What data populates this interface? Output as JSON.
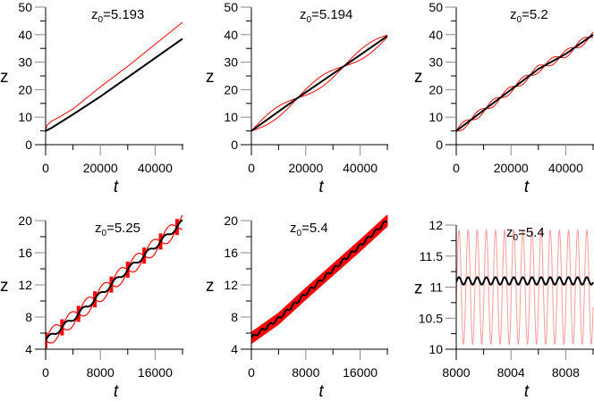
{
  "figure": {
    "colors": {
      "red_series": "#ff0000",
      "black_series": "#000000",
      "light_red": "#ff9a9a",
      "axis": "#000000",
      "major_tick": "#888888"
    }
  },
  "chart_data": [
    {
      "type": "line",
      "panel": "a",
      "title": "z0=5.193",
      "title_parts": {
        "var": "z",
        "sub": "0",
        "value": "=5.193"
      },
      "xlabel": "t",
      "ylabel": "z",
      "xlim": [
        0,
        50000
      ],
      "ylim": [
        0,
        50
      ],
      "xticks": [
        0,
        20000,
        40000
      ],
      "xtick_labels": [
        "0",
        "20000",
        "40000"
      ],
      "yticks": [
        0,
        10,
        20,
        30,
        40,
        50
      ],
      "ytick_labels": [
        "0",
        "10",
        "20",
        "30",
        "40",
        "50"
      ],
      "series": [
        {
          "name": "red",
          "color": "#ff0000",
          "x": [
            0,
            500,
            2000,
            5000,
            10000,
            20000,
            30000,
            40000,
            50000
          ],
          "y": [
            5,
            7,
            8.5,
            10,
            13,
            21,
            28.5,
            36.5,
            44.5
          ]
        },
        {
          "name": "black",
          "color": "#000000",
          "x": [
            0,
            2000,
            10000,
            20000,
            30000,
            40000,
            50000
          ],
          "y": [
            5,
            6,
            11,
            17.5,
            24.5,
            31.5,
            38.5
          ]
        }
      ]
    },
    {
      "type": "line",
      "panel": "b",
      "title": "z0=5.194",
      "title_parts": {
        "var": "z",
        "sub": "0",
        "value": "=5.194"
      },
      "xlabel": "t",
      "ylabel": "z",
      "xlim": [
        0,
        50000
      ],
      "ylim": [
        0,
        50
      ],
      "xticks": [
        0,
        20000,
        40000
      ],
      "xtick_labels": [
        "0",
        "20000",
        "40000"
      ],
      "yticks": [
        0,
        10,
        20,
        30,
        40,
        50
      ],
      "ytick_labels": [
        "0",
        "10",
        "20",
        "30",
        "40",
        "50"
      ],
      "series": [
        {
          "name": "black",
          "color": "#000000",
          "x": [
            0,
            17000,
            34000,
            50000
          ],
          "y": [
            5,
            17,
            28.5,
            39.5
          ]
        },
        {
          "name": "red",
          "color": "#ff0000",
          "note": "elliptical loops around black line, period ~17000 in t",
          "loop_centers_t": [
            8500,
            25500,
            42000
          ],
          "loop_half_width_z": 2.0
        }
      ]
    },
    {
      "type": "line",
      "panel": "c",
      "title": "z0=5.2",
      "title_parts": {
        "var": "z",
        "sub": "0",
        "value": "=5.2"
      },
      "xlabel": "t",
      "ylabel": "z",
      "xlim": [
        0,
        50000
      ],
      "ylim": [
        0,
        50
      ],
      "xticks": [
        0,
        20000,
        40000
      ],
      "xtick_labels": [
        "0",
        "20000",
        "40000"
      ],
      "yticks": [
        0,
        10,
        20,
        30,
        40,
        50
      ],
      "ytick_labels": [
        "0",
        "10",
        "20",
        "30",
        "40",
        "50"
      ],
      "series": [
        {
          "name": "black",
          "color": "#000000",
          "x": [
            0,
            10000,
            20000,
            30000,
            40000,
            50000
          ],
          "y": [
            5,
            12.5,
            20,
            27.5,
            33,
            40
          ]
        },
        {
          "name": "red",
          "color": "#ff0000",
          "note": "small elliptical loops, period ~5500 in t",
          "loop_half_width_z": 1.3
        }
      ]
    },
    {
      "type": "line",
      "panel": "d",
      "title": "z0=5.25",
      "title_parts": {
        "var": "z",
        "sub": "0",
        "value": "=5.25"
      },
      "xlabel": "t",
      "ylabel": "z",
      "xlim": [
        0,
        20000
      ],
      "ylim": [
        4,
        20
      ],
      "xticks": [
        0,
        8000,
        16000
      ],
      "xtick_labels": [
        "0",
        "8000",
        "16000"
      ],
      "yticks": [
        4,
        8,
        12,
        16,
        20
      ],
      "ytick_labels": [
        "4",
        "8",
        "12",
        "16",
        "20"
      ],
      "series": [
        {
          "name": "black",
          "color": "#000000",
          "x": [
            0,
            4000,
            8000,
            12000,
            16000,
            20000
          ],
          "y": [
            5.1,
            7.8,
            10.8,
            13.9,
            16.8,
            19.8
          ],
          "wiggle_period_t": 2400,
          "wiggle_amp_z": 0.3
        },
        {
          "name": "red",
          "color": "#ff0000",
          "note": "dense oscillating bands around black line",
          "band_half_width_z": 1.0
        }
      ]
    },
    {
      "type": "line",
      "panel": "e",
      "title": "z0=5.4",
      "title_parts": {
        "var": "z",
        "sub": "0",
        "value": "=5.4"
      },
      "xlabel": "t",
      "ylabel": "z",
      "xlim": [
        0,
        20000
      ],
      "ylim": [
        4,
        20
      ],
      "xticks": [
        0,
        8000,
        16000
      ],
      "xtick_labels": [
        "0",
        "8000",
        "16000"
      ],
      "yticks": [
        4,
        8,
        12,
        16,
        20
      ],
      "ytick_labels": [
        "4",
        "8",
        "12",
        "16",
        "20"
      ],
      "series": [
        {
          "name": "black",
          "color": "#000000",
          "x": [
            0,
            4000,
            8000,
            12000,
            16000,
            20000
          ],
          "y": [
            5.4,
            7.8,
            10.9,
            13.9,
            16.9,
            20
          ],
          "wiggle_period_t": 1200,
          "wiggle_amp_z": 0.2
        },
        {
          "name": "red",
          "color": "#ff0000",
          "note": "solid filled band around black line",
          "band_half_width_z": 0.7
        }
      ]
    },
    {
      "type": "line",
      "panel": "f",
      "title": "z0=5.4",
      "title_parts": {
        "var": "z",
        "sub": "0",
        "value": "=5.4"
      },
      "xlabel": "t",
      "ylabel": "z",
      "xlim": [
        8000,
        8010
      ],
      "ylim": [
        10,
        12
      ],
      "xticks": [
        8000,
        8004,
        8008
      ],
      "xtick_labels": [
        "8000",
        "8004",
        "8008"
      ],
      "yticks": [
        10,
        10.5,
        11,
        11.5,
        12
      ],
      "ytick_labels": [
        "10",
        "10.5",
        "11",
        "11.5",
        "12"
      ],
      "series": [
        {
          "name": "black",
          "color": "#000000",
          "center_z": 11.1,
          "amp_z": 0.06,
          "period_t": 0.667
        },
        {
          "name": "red",
          "color": "#ff9a9a",
          "center_z": 11.0,
          "amp_z": 0.92,
          "period_t": 0.667,
          "min_z": 10.08,
          "max_z": 11.92
        }
      ]
    }
  ]
}
